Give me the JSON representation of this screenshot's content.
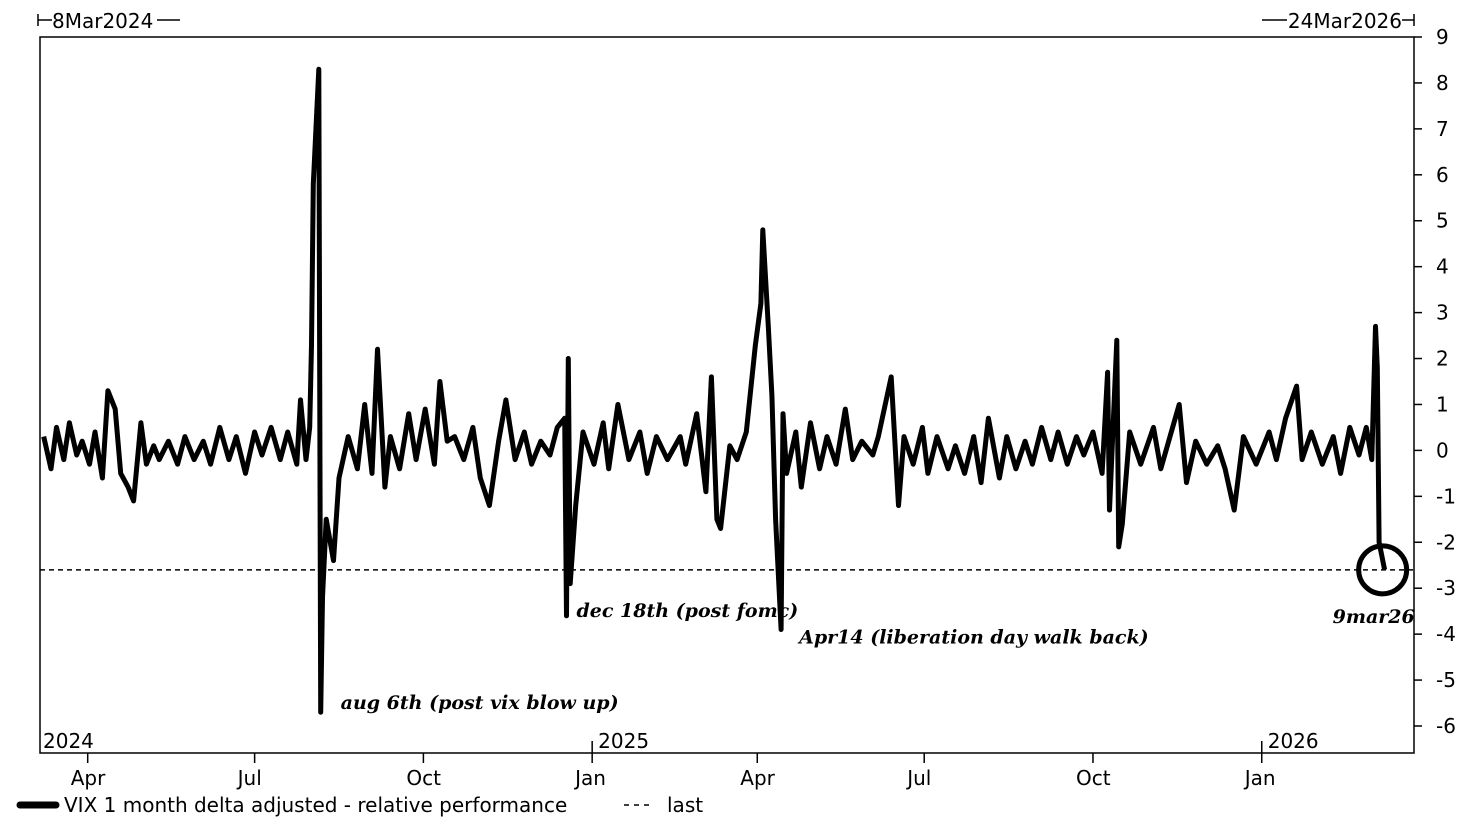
{
  "chart_data": {
    "type": "line",
    "start_label": "8Mar2024",
    "end_label": "24Mar2026",
    "year_labels": [
      {
        "label": "2024",
        "date": "2024-03-08"
      },
      {
        "label": "2025",
        "date": "2025-01-01"
      },
      {
        "label": "2026",
        "date": "2026-01-01"
      }
    ],
    "month_ticks": [
      {
        "label": "Apr",
        "date": "2024-04-01"
      },
      {
        "label": "Jul",
        "date": "2024-07-01"
      },
      {
        "label": "Oct",
        "date": "2024-10-01"
      },
      {
        "label": "Jan",
        "date": "2025-01-01"
      },
      {
        "label": "Apr",
        "date": "2025-04-01"
      },
      {
        "label": "Jul",
        "date": "2025-07-01"
      },
      {
        "label": "Oct",
        "date": "2025-10-01"
      },
      {
        "label": "Jan",
        "date": "2026-01-01"
      }
    ],
    "ylim": [
      -6.5,
      9
    ],
    "yticks": [
      9,
      8,
      7,
      6,
      5,
      4,
      3,
      2,
      1,
      0,
      -1,
      -2,
      -3,
      -4,
      -5,
      -6
    ],
    "ytick_labels": [
      "9",
      "8",
      "7",
      "6",
      "5",
      "4",
      "3",
      "2",
      "1",
      "0",
      "-1",
      "-2",
      "-3",
      "-4",
      "-5",
      "-6"
    ],
    "series": [
      {
        "name": "VIX 1 month delta adjusted - relative performance",
        "color": "#000000",
        "points": [
          [
            "2024-03-08",
            0.3
          ],
          [
            "2024-03-12",
            -0.4
          ],
          [
            "2024-03-15",
            0.5
          ],
          [
            "2024-03-19",
            -0.2
          ],
          [
            "2024-03-22",
            0.6
          ],
          [
            "2024-03-26",
            -0.1
          ],
          [
            "2024-03-29",
            0.2
          ],
          [
            "2024-04-02",
            -0.3
          ],
          [
            "2024-04-05",
            0.4
          ],
          [
            "2024-04-09",
            -0.6
          ],
          [
            "2024-04-12",
            1.3
          ],
          [
            "2024-04-16",
            0.9
          ],
          [
            "2024-04-19",
            -0.5
          ],
          [
            "2024-04-23",
            -0.8
          ],
          [
            "2024-04-26",
            -1.1
          ],
          [
            "2024-04-30",
            0.6
          ],
          [
            "2024-05-03",
            -0.3
          ],
          [
            "2024-05-07",
            0.1
          ],
          [
            "2024-05-10",
            -0.2
          ],
          [
            "2024-05-15",
            0.2
          ],
          [
            "2024-05-20",
            -0.3
          ],
          [
            "2024-05-24",
            0.3
          ],
          [
            "2024-05-29",
            -0.2
          ],
          [
            "2024-06-03",
            0.2
          ],
          [
            "2024-06-07",
            -0.3
          ],
          [
            "2024-06-12",
            0.5
          ],
          [
            "2024-06-17",
            -0.2
          ],
          [
            "2024-06-21",
            0.3
          ],
          [
            "2024-06-26",
            -0.5
          ],
          [
            "2024-07-01",
            0.4
          ],
          [
            "2024-07-05",
            -0.1
          ],
          [
            "2024-07-10",
            0.5
          ],
          [
            "2024-07-15",
            -0.2
          ],
          [
            "2024-07-19",
            0.4
          ],
          [
            "2024-07-24",
            -0.3
          ],
          [
            "2024-07-26",
            1.1
          ],
          [
            "2024-07-29",
            -0.2
          ],
          [
            "2024-07-31",
            0.5
          ],
          [
            "2024-08-01",
            2.3
          ],
          [
            "2024-08-02",
            5.8
          ],
          [
            "2024-08-05",
            8.3
          ],
          [
            "2024-08-06",
            -5.7
          ],
          [
            "2024-08-07",
            -3.2
          ],
          [
            "2024-08-09",
            -1.5
          ],
          [
            "2024-08-13",
            -2.4
          ],
          [
            "2024-08-16",
            -0.6
          ],
          [
            "2024-08-21",
            0.3
          ],
          [
            "2024-08-26",
            -0.4
          ],
          [
            "2024-08-30",
            1.0
          ],
          [
            "2024-09-03",
            -0.5
          ],
          [
            "2024-09-06",
            2.2
          ],
          [
            "2024-09-10",
            -0.8
          ],
          [
            "2024-09-13",
            0.3
          ],
          [
            "2024-09-18",
            -0.4
          ],
          [
            "2024-09-23",
            0.8
          ],
          [
            "2024-09-27",
            -0.2
          ],
          [
            "2024-10-02",
            0.9
          ],
          [
            "2024-10-07",
            -0.3
          ],
          [
            "2024-10-10",
            1.5
          ],
          [
            "2024-10-14",
            0.2
          ],
          [
            "2024-10-18",
            0.3
          ],
          [
            "2024-10-23",
            -0.2
          ],
          [
            "2024-10-28",
            0.5
          ],
          [
            "2024-11-01",
            -0.6
          ],
          [
            "2024-11-06",
            -1.2
          ],
          [
            "2024-11-11",
            0.2
          ],
          [
            "2024-11-15",
            1.1
          ],
          [
            "2024-11-20",
            -0.2
          ],
          [
            "2024-11-25",
            0.4
          ],
          [
            "2024-11-29",
            -0.3
          ],
          [
            "2024-12-04",
            0.2
          ],
          [
            "2024-12-09",
            -0.1
          ],
          [
            "2024-12-13",
            0.5
          ],
          [
            "2024-12-17",
            0.7
          ],
          [
            "2024-12-18",
            -3.6
          ],
          [
            "2024-12-19",
            2.0
          ],
          [
            "2024-12-20",
            -2.9
          ],
          [
            "2024-12-23",
            -1.2
          ],
          [
            "2024-12-27",
            0.4
          ],
          [
            "2025-01-02",
            -0.3
          ],
          [
            "2025-01-07",
            0.6
          ],
          [
            "2025-01-10",
            -0.4
          ],
          [
            "2025-01-15",
            1.0
          ],
          [
            "2025-01-21",
            -0.2
          ],
          [
            "2025-01-27",
            0.4
          ],
          [
            "2025-01-31",
            -0.5
          ],
          [
            "2025-02-05",
            0.3
          ],
          [
            "2025-02-11",
            -0.2
          ],
          [
            "2025-02-18",
            0.3
          ],
          [
            "2025-02-21",
            -0.3
          ],
          [
            "2025-02-27",
            0.8
          ],
          [
            "2025-03-04",
            -0.9
          ],
          [
            "2025-03-07",
            1.6
          ],
          [
            "2025-03-10",
            -1.5
          ],
          [
            "2025-03-12",
            -1.7
          ],
          [
            "2025-03-17",
            0.1
          ],
          [
            "2025-03-21",
            -0.2
          ],
          [
            "2025-03-26",
            0.4
          ],
          [
            "2025-03-31",
            2.3
          ],
          [
            "2025-04-03",
            3.2
          ],
          [
            "2025-04-04",
            4.8
          ],
          [
            "2025-04-07",
            2.7
          ],
          [
            "2025-04-09",
            1.2
          ],
          [
            "2025-04-11",
            -1.5
          ],
          [
            "2025-04-14",
            -3.9
          ],
          [
            "2025-04-15",
            0.8
          ],
          [
            "2025-04-17",
            -0.5
          ],
          [
            "2025-04-22",
            0.4
          ],
          [
            "2025-04-25",
            -0.8
          ],
          [
            "2025-04-30",
            0.6
          ],
          [
            "2025-05-05",
            -0.4
          ],
          [
            "2025-05-09",
            0.3
          ],
          [
            "2025-05-14",
            -0.3
          ],
          [
            "2025-05-19",
            0.9
          ],
          [
            "2025-05-23",
            -0.2
          ],
          [
            "2025-05-28",
            0.2
          ],
          [
            "2025-06-03",
            -0.1
          ],
          [
            "2025-06-06",
            0.3
          ],
          [
            "2025-06-13",
            1.6
          ],
          [
            "2025-06-17",
            -1.2
          ],
          [
            "2025-06-20",
            0.3
          ],
          [
            "2025-06-25",
            -0.3
          ],
          [
            "2025-06-30",
            0.5
          ],
          [
            "2025-07-03",
            -0.5
          ],
          [
            "2025-07-08",
            0.3
          ],
          [
            "2025-07-14",
            -0.4
          ],
          [
            "2025-07-18",
            0.1
          ],
          [
            "2025-07-23",
            -0.5
          ],
          [
            "2025-07-28",
            0.3
          ],
          [
            "2025-08-01",
            -0.7
          ],
          [
            "2025-08-05",
            0.7
          ],
          [
            "2025-08-11",
            -0.6
          ],
          [
            "2025-08-15",
            0.3
          ],
          [
            "2025-08-20",
            -0.4
          ],
          [
            "2025-08-25",
            0.2
          ],
          [
            "2025-08-29",
            -0.3
          ],
          [
            "2025-09-03",
            0.5
          ],
          [
            "2025-09-08",
            -0.2
          ],
          [
            "2025-09-12",
            0.4
          ],
          [
            "2025-09-17",
            -0.3
          ],
          [
            "2025-09-22",
            0.3
          ],
          [
            "2025-09-26",
            -0.1
          ],
          [
            "2025-10-01",
            0.4
          ],
          [
            "2025-10-06",
            -0.5
          ],
          [
            "2025-10-09",
            1.7
          ],
          [
            "2025-10-10",
            -1.3
          ],
          [
            "2025-10-14",
            2.4
          ],
          [
            "2025-10-15",
            -2.1
          ],
          [
            "2025-10-17",
            -1.6
          ],
          [
            "2025-10-21",
            0.4
          ],
          [
            "2025-10-27",
            -0.3
          ],
          [
            "2025-11-03",
            0.5
          ],
          [
            "2025-11-07",
            -0.4
          ],
          [
            "2025-11-12",
            0.3
          ],
          [
            "2025-11-17",
            1.0
          ],
          [
            "2025-11-21",
            -0.7
          ],
          [
            "2025-11-26",
            0.2
          ],
          [
            "2025-12-02",
            -0.3
          ],
          [
            "2025-12-08",
            0.1
          ],
          [
            "2025-12-12",
            -0.4
          ],
          [
            "2025-12-17",
            -1.3
          ],
          [
            "2025-12-22",
            0.3
          ],
          [
            "2025-12-29",
            -0.3
          ],
          [
            "2026-01-05",
            0.4
          ],
          [
            "2026-01-09",
            -0.2
          ],
          [
            "2026-01-14",
            0.7
          ],
          [
            "2026-01-20",
            1.4
          ],
          [
            "2026-01-23",
            -0.2
          ],
          [
            "2026-01-28",
            0.4
          ],
          [
            "2026-02-03",
            -0.3
          ],
          [
            "2026-02-09",
            0.3
          ],
          [
            "2026-02-13",
            -0.5
          ],
          [
            "2026-02-18",
            0.5
          ],
          [
            "2026-02-23",
            -0.1
          ],
          [
            "2026-02-27",
            0.5
          ],
          [
            "2026-03-02",
            -0.2
          ],
          [
            "2026-03-04",
            2.7
          ],
          [
            "2026-03-05",
            1.8
          ],
          [
            "2026-03-06",
            -2.0
          ],
          [
            "2026-03-09",
            -2.6
          ]
        ]
      },
      {
        "name": "last",
        "color": "#000000",
        "style": "dashed",
        "value": -2.6
      }
    ],
    "annotations": [
      {
        "text": "aug 6th (post vix blow up)",
        "date": "2024-08-06",
        "value": -5.7
      },
      {
        "text": "dec 18th (post fomc)",
        "date": "2024-12-18",
        "value": -3.6
      },
      {
        "text": "Apr14 (liberation day walk back)",
        "date": "2025-04-14",
        "value": -3.9
      },
      {
        "text": "9mar26",
        "date": "2026-03-09",
        "value": -2.6
      }
    ],
    "legend": {
      "position": "bottom-left"
    },
    "grid": false
  }
}
